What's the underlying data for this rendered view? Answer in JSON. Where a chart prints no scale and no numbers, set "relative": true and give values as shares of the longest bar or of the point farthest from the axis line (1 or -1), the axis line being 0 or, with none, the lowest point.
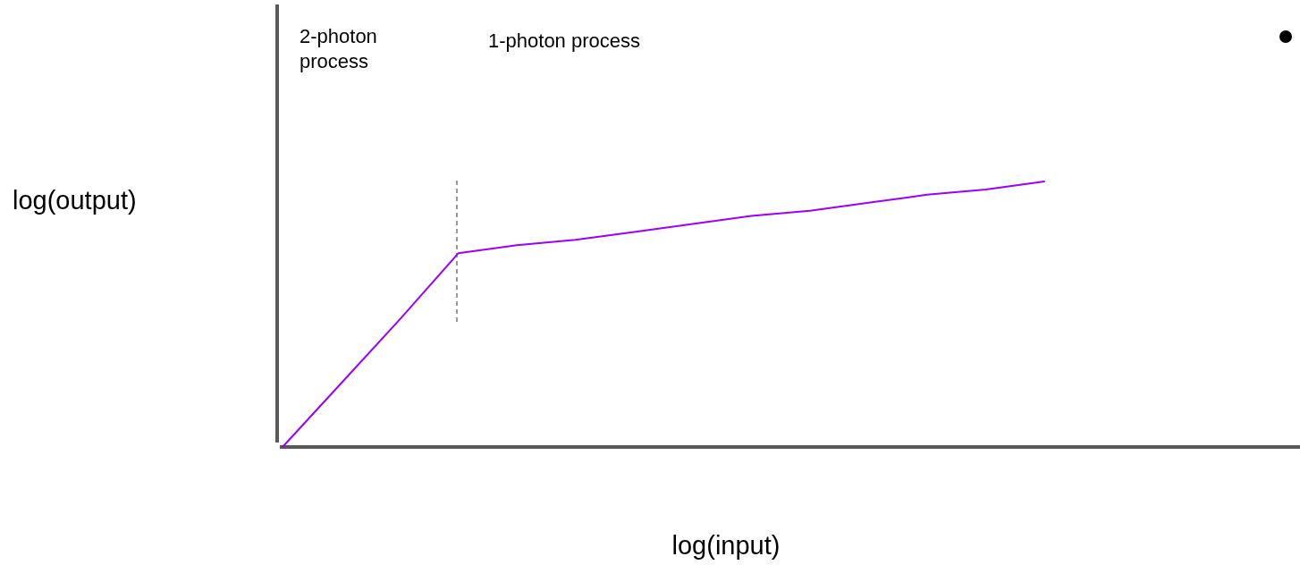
{
  "chart_data": {
    "type": "line",
    "relative": true,
    "xlabel": "log(input)",
    "ylabel": "log(output)",
    "categories": [
      null,
      null,
      null,
      null,
      null,
      null,
      null,
      null,
      null,
      null,
      null,
      null,
      null,
      null
    ],
    "series": [
      {
        "color": "#9900ff",
        "values": [
          0,
          0.24,
          0.48,
          0.73,
          0.76,
          0.78,
          0.81,
          0.84,
          0.87,
          0.89,
          0.92,
          0.95,
          0.97,
          1
        ]
      }
    ],
    "annotations": [
      "2-photon process",
      "1-photon process"
    ],
    "marker": "none",
    "line_style": "solid"
  }
}
